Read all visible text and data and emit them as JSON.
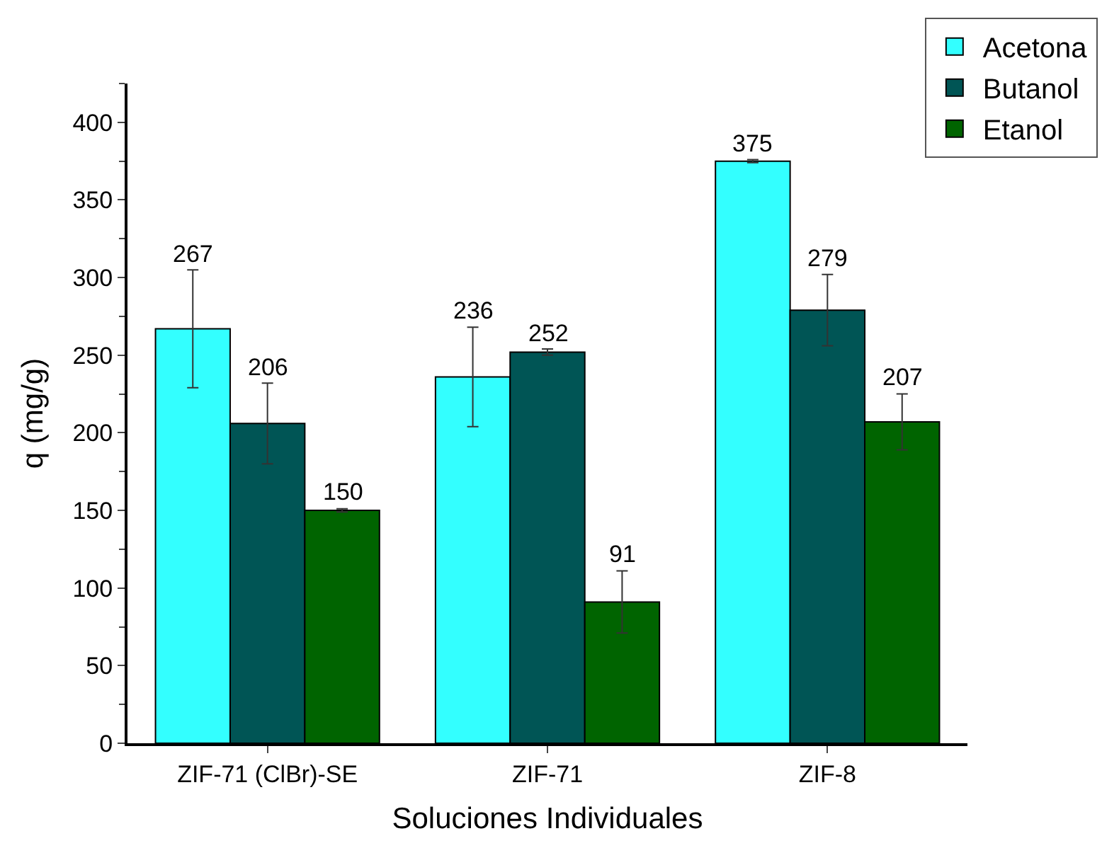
{
  "chart_data": {
    "type": "bar",
    "xlabel": "Soluciones Individuales",
    "ylabel": "q (mg/g)",
    "categories": [
      "ZIF-71 (ClBr)-SE",
      "ZIF-71",
      "ZIF-8"
    ],
    "series": [
      {
        "name": "Acetona",
        "color": "#33ffff",
        "values": [
          267,
          236,
          375
        ],
        "errors": [
          38,
          32,
          1
        ]
      },
      {
        "name": "Butanol",
        "color": "#005555",
        "values": [
          206,
          252,
          279
        ],
        "errors": [
          26,
          2,
          23
        ]
      },
      {
        "name": "Etanol",
        "color": "#006400",
        "values": [
          150,
          91,
          207
        ],
        "errors": [
          1,
          20,
          18
        ]
      }
    ],
    "ylim": [
      0,
      425
    ],
    "yticks": [
      0,
      50,
      100,
      150,
      200,
      250,
      300,
      350,
      400
    ],
    "data_labels": true,
    "legend": "top right"
  }
}
